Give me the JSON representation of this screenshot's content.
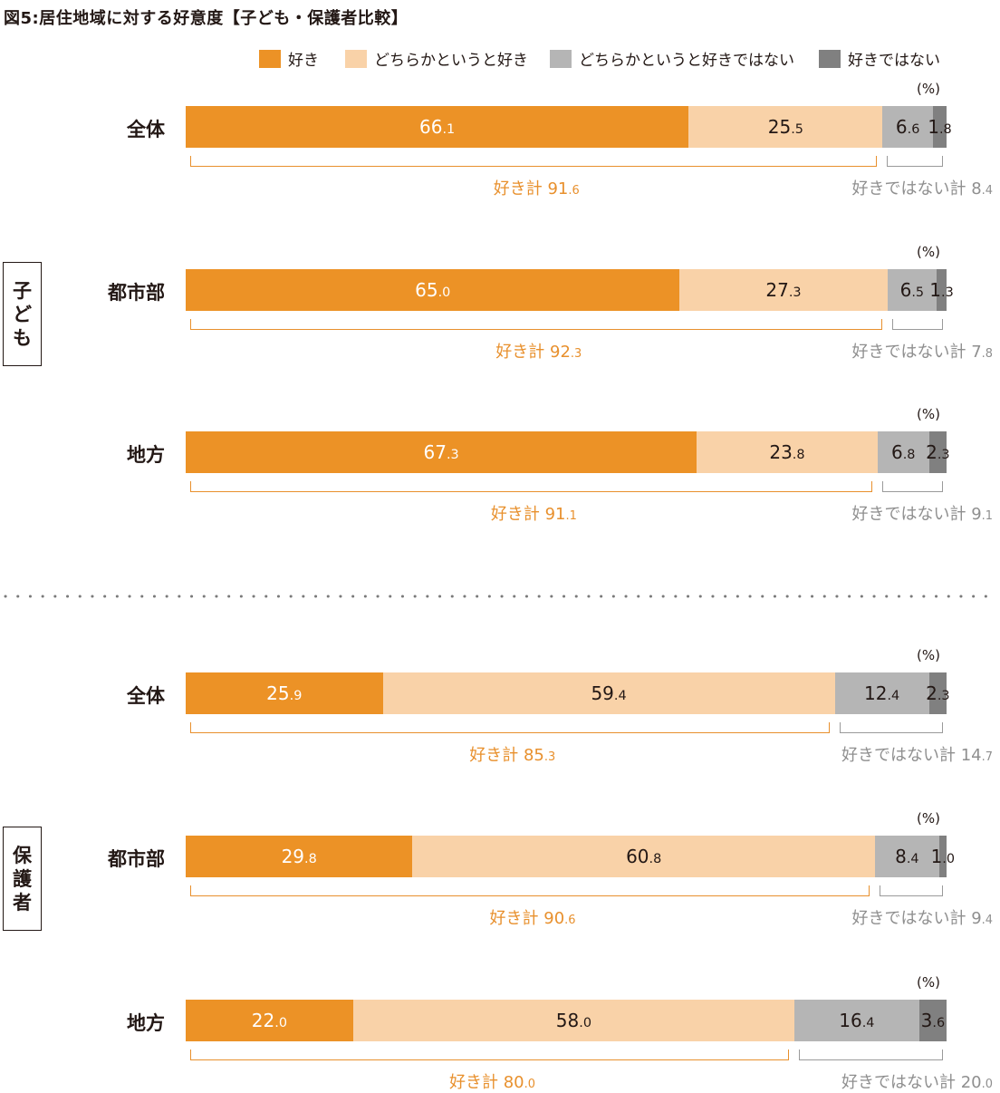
{
  "chart_data": {
    "type": "bar",
    "orientation": "horizontal",
    "stacked": true,
    "title": "図5:居住地域に対する好意度【子ども・保護者比較】",
    "unit_label": "(%)",
    "legend": [
      {
        "name": "好き",
        "color": "#ec9226"
      },
      {
        "name": "どちらかというと好き",
        "color": "#f9d2a8"
      },
      {
        "name": "どちらかというと好きではない",
        "color": "#b5b5b5"
      },
      {
        "name": "好きではない",
        "color": "#808080"
      }
    ],
    "like_total_prefix": "好き計",
    "dislike_total_prefix": "好きではない計",
    "groups": [
      {
        "label": "子ども",
        "rows": [
          {
            "category": "全体",
            "values": [
              66.1,
              25.5,
              6.6,
              1.8
            ],
            "labels": [
              "66.1",
              "25.5",
              "6.6",
              "1.8"
            ],
            "like_total": "91.6",
            "dislike_total": "8.4"
          },
          {
            "category": "都市部",
            "values": [
              65.0,
              27.3,
              6.5,
              1.3
            ],
            "labels": [
              "65.0",
              "27.3",
              "6.5",
              "1.3"
            ],
            "like_total": "92.3",
            "dislike_total": "7.8"
          },
          {
            "category": "地方",
            "values": [
              67.3,
              23.8,
              6.8,
              2.3
            ],
            "labels": [
              "67.3",
              "23.8",
              "6.8",
              "2.3"
            ],
            "like_total": "91.1",
            "dislike_total": "9.1"
          }
        ]
      },
      {
        "label": "保護者",
        "rows": [
          {
            "category": "全体",
            "values": [
              25.9,
              59.4,
              12.4,
              2.3
            ],
            "labels": [
              "25.9",
              "59.4",
              "12.4",
              "2.3"
            ],
            "like_total": "85.3",
            "dislike_total": "14.7"
          },
          {
            "category": "都市部",
            "values": [
              29.8,
              60.8,
              8.4,
              1.0
            ],
            "labels": [
              "29.8",
              "60.8",
              "8.4",
              "1.0"
            ],
            "like_total": "90.6",
            "dislike_total": "9.4"
          },
          {
            "category": "地方",
            "values": [
              22.0,
              58.0,
              16.4,
              3.6
            ],
            "labels": [
              "22.0",
              "58.0",
              "16.4",
              "3.6"
            ],
            "like_total": "80.0",
            "dislike_total": "20.0"
          }
        ]
      }
    ],
    "xlim": [
      0,
      100
    ]
  }
}
